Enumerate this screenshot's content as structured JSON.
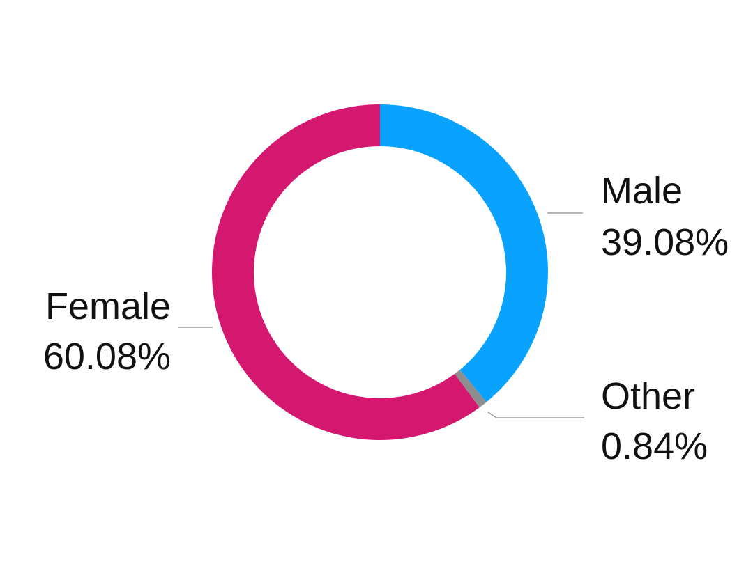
{
  "chart_data": {
    "type": "pie",
    "donut": true,
    "slices": [
      {
        "label": "Male",
        "value_label": "39.08%",
        "value": 39.08,
        "color": "#0aa2ff"
      },
      {
        "label": "Other",
        "value_label": "0.84%",
        "value": 0.84,
        "color": "#8e8e8e"
      },
      {
        "label": "Female",
        "value_label": "60.08%",
        "value": 60.08,
        "color": "#d4176f"
      }
    ],
    "start_angle": "12 o'clock",
    "direction": "clockwise",
    "legend": "none"
  }
}
